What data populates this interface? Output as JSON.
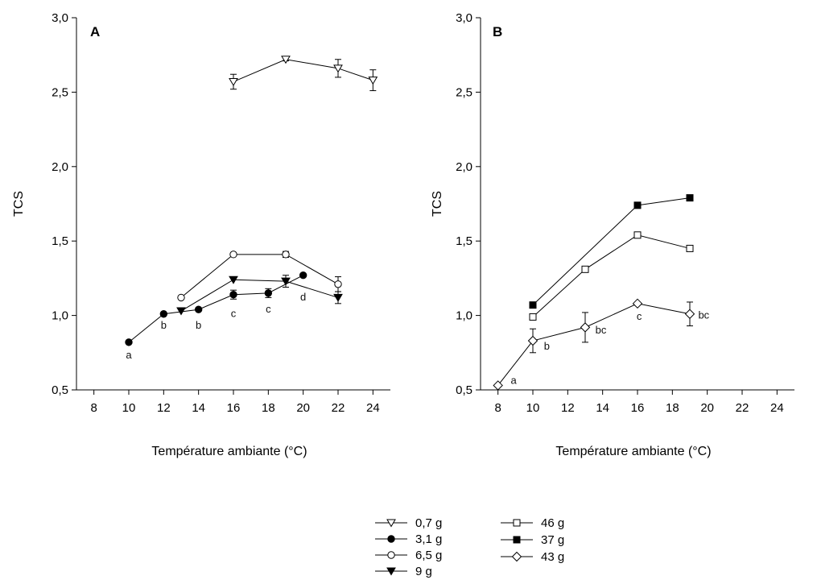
{
  "chart_data": [
    {
      "panel": "A",
      "type": "line",
      "xlabel": "Température ambiante (°C)",
      "ylabel": "TCS",
      "xlim": [
        7,
        25
      ],
      "ylim": [
        0.5,
        3.0
      ],
      "x_ticks": [
        8,
        10,
        12,
        14,
        16,
        18,
        20,
        22,
        24
      ],
      "y_ticks": [
        "0,5",
        "1,0",
        "1,5",
        "2,0",
        "2,5",
        "3,0"
      ],
      "series": [
        {
          "name": "0,7 g",
          "marker": "triangle-down",
          "fill": "open",
          "x": [
            16,
            19,
            22,
            24
          ],
          "y": [
            2.57,
            2.72,
            2.66,
            2.58
          ],
          "err": [
            0.05,
            0.01,
            0.06,
            0.07
          ]
        },
        {
          "name": "3,1 g",
          "marker": "circle",
          "fill": "filled",
          "x": [
            10,
            12,
            14,
            16,
            18,
            20
          ],
          "y": [
            0.82,
            1.01,
            1.04,
            1.14,
            1.15,
            1.27
          ],
          "err": [
            0,
            0,
            0,
            0.03,
            0.03,
            0
          ]
        },
        {
          "name": "6,5 g",
          "marker": "circle",
          "fill": "open",
          "x": [
            13,
            16,
            19,
            22
          ],
          "y": [
            1.12,
            1.41,
            1.41,
            1.21
          ],
          "err": [
            0,
            0,
            0.02,
            0.05
          ]
        },
        {
          "name": "9 g",
          "marker": "triangle-down",
          "fill": "filled",
          "x": [
            13,
            16,
            19,
            22
          ],
          "y": [
            1.03,
            1.24,
            1.23,
            1.12
          ],
          "err": [
            0,
            0,
            0.04,
            0.04
          ]
        }
      ],
      "annotations": [
        {
          "text": "a",
          "x": 10,
          "y": 0.71
        },
        {
          "text": "b",
          "x": 12,
          "y": 0.91
        },
        {
          "text": "b",
          "x": 14,
          "y": 0.91
        },
        {
          "text": "c",
          "x": 16,
          "y": 0.99
        },
        {
          "text": "c",
          "x": 18,
          "y": 1.02
        },
        {
          "text": "d",
          "x": 20,
          "y": 1.1
        }
      ]
    },
    {
      "panel": "B",
      "type": "line",
      "xlabel": "Température ambiante (°C)",
      "ylabel": "TCS",
      "xlim": [
        7,
        25
      ],
      "ylim": [
        0.5,
        3.0
      ],
      "x_ticks": [
        8,
        10,
        12,
        14,
        16,
        18,
        20,
        22,
        24
      ],
      "y_ticks": [
        "0,5",
        "1,0",
        "1,5",
        "2,0",
        "2,5",
        "3,0"
      ],
      "series": [
        {
          "name": "46 g",
          "marker": "square",
          "fill": "open",
          "x": [
            10,
            13,
            16,
            19
          ],
          "y": [
            0.99,
            1.31,
            1.54,
            1.45
          ],
          "err": [
            0,
            0,
            0,
            0
          ]
        },
        {
          "name": "37 g",
          "marker": "square",
          "fill": "filled",
          "x": [
            10,
            16,
            19
          ],
          "y": [
            1.07,
            1.74,
            1.79
          ],
          "err": [
            0,
            0,
            0
          ]
        },
        {
          "name": "43 g",
          "marker": "diamond",
          "fill": "open",
          "x": [
            8,
            10,
            13,
            16,
            19
          ],
          "y": [
            0.53,
            0.83,
            0.92,
            1.08,
            1.01
          ],
          "err": [
            0,
            0.08,
            0.1,
            0,
            0.08
          ]
        }
      ],
      "annotations": [
        {
          "text": "a",
          "x": 8.9,
          "y": 0.54
        },
        {
          "text": "b",
          "x": 10.8,
          "y": 0.77
        },
        {
          "text": "bc",
          "x": 13.9,
          "y": 0.88
        },
        {
          "text": "c",
          "x": 16.1,
          "y": 0.97
        },
        {
          "text": "bc",
          "x": 19.8,
          "y": 0.98
        }
      ]
    }
  ],
  "legend": {
    "col1": [
      "0,7 g",
      "3,1 g",
      "6,5 g",
      "9 g"
    ],
    "col2": [
      "46 g",
      "37 g",
      "43 g"
    ]
  }
}
